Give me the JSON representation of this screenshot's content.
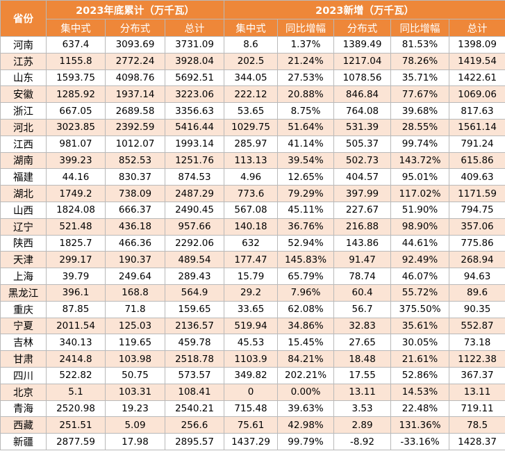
{
  "table": {
    "province_header": "省份",
    "group_2023_cumulative": "2023年底累计（万千瓦）",
    "group_2023_new": "2023新增（万千瓦）",
    "cumulative_columns": [
      "集中式",
      "分布式",
      "总计"
    ],
    "new_columns": [
      "集中式",
      "同比增幅",
      "分布式",
      "同比增幅",
      "总计"
    ],
    "rows": [
      [
        "河南",
        "637.4",
        "3093.69",
        "3731.09",
        "8.6",
        "1.37%",
        "1389.49",
        "81.53%",
        "1398.09"
      ],
      [
        "江苏",
        "1155.8",
        "2772.24",
        "3928.04",
        "202.5",
        "21.24%",
        "1217.04",
        "78.26%",
        "1419.54"
      ],
      [
        "山东",
        "1593.75",
        "4098.76",
        "5692.51",
        "344.05",
        "27.53%",
        "1078.56",
        "35.71%",
        "1422.61"
      ],
      [
        "安徽",
        "1285.92",
        "1937.14",
        "3223.06",
        "222.12",
        "20.88%",
        "846.84",
        "77.67%",
        "1069.06"
      ],
      [
        "浙江",
        "667.05",
        "2689.58",
        "3356.63",
        "53.65",
        "8.75%",
        "764.08",
        "39.68%",
        "817.63"
      ],
      [
        "河北",
        "3023.85",
        "2392.59",
        "5416.44",
        "1029.75",
        "51.64%",
        "531.39",
        "28.55%",
        "1561.14"
      ],
      [
        "江西",
        "981.07",
        "1012.07",
        "1993.14",
        "285.97",
        "41.14%",
        "505.37",
        "99.74%",
        "791.24"
      ],
      [
        "湖南",
        "399.23",
        "852.53",
        "1251.76",
        "113.13",
        "39.54%",
        "502.73",
        "143.72%",
        "615.86"
      ],
      [
        "福建",
        "44.16",
        "830.37",
        "874.53",
        "4.96",
        "12.65%",
        "404.57",
        "95.01%",
        "409.63"
      ],
      [
        "湖北",
        "1749.2",
        "738.09",
        "2487.29",
        "773.6",
        "79.29%",
        "397.99",
        "117.02%",
        "1171.59"
      ],
      [
        "山西",
        "1824.08",
        "666.37",
        "2490.45",
        "567.08",
        "45.11%",
        "227.67",
        "51.90%",
        "794.75"
      ],
      [
        "辽宁",
        "521.48",
        "436.18",
        "957.66",
        "140.18",
        "36.76%",
        "216.88",
        "98.90%",
        "357.06"
      ],
      [
        "陕西",
        "1825.7",
        "466.36",
        "2292.06",
        "632",
        "52.94%",
        "143.86",
        "44.61%",
        "775.86"
      ],
      [
        "天津",
        "299.17",
        "190.37",
        "489.54",
        "177.47",
        "145.83%",
        "91.47",
        "92.49%",
        "268.94"
      ],
      [
        "上海",
        "39.79",
        "249.64",
        "289.43",
        "15.79",
        "65.79%",
        "78.74",
        "46.07%",
        "94.63"
      ],
      [
        "黑龙江",
        "396.1",
        "168.8",
        "564.9",
        "29.2",
        "7.96%",
        "60.4",
        "55.72%",
        "89.6"
      ],
      [
        "重庆",
        "87.85",
        "71.8",
        "159.65",
        "33.65",
        "62.08%",
        "56.7",
        "375.50%",
        "90.35"
      ],
      [
        "宁夏",
        "2011.54",
        "125.03",
        "2136.57",
        "519.94",
        "34.86%",
        "32.83",
        "35.61%",
        "552.87"
      ],
      [
        "吉林",
        "340.13",
        "119.65",
        "459.78",
        "45.53",
        "15.45%",
        "27.65",
        "30.05%",
        "73.18"
      ],
      [
        "甘肃",
        "2414.8",
        "103.98",
        "2518.78",
        "1103.9",
        "84.21%",
        "18.48",
        "21.61%",
        "1122.38"
      ],
      [
        "四川",
        "522.82",
        "50.75",
        "573.57",
        "349.82",
        "202.21%",
        "17.55",
        "52.86%",
        "367.37"
      ],
      [
        "北京",
        "5.1",
        "103.31",
        "108.41",
        "0",
        "0.00%",
        "13.11",
        "14.53%",
        "13.11"
      ],
      [
        "青海",
        "2520.98",
        "19.23",
        "2540.21",
        "715.48",
        "39.63%",
        "3.53",
        "22.48%",
        "719.11"
      ],
      [
        "西藏",
        "251.51",
        "5.09",
        "256.6",
        "75.61",
        "42.98%",
        "2.89",
        "131.36%",
        "78.5"
      ],
      [
        "新疆",
        "2877.59",
        "17.98",
        "2895.57",
        "1437.29",
        "99.79%",
        "-8.92",
        "-33.16%",
        "1428.37"
      ]
    ]
  },
  "colors": {
    "header_bg": "#ee8739",
    "header_text": "#ffffff",
    "stripe_bg": "#fbe4d5",
    "row_bg": "#ffffff",
    "grid": "#b9b9b9"
  }
}
